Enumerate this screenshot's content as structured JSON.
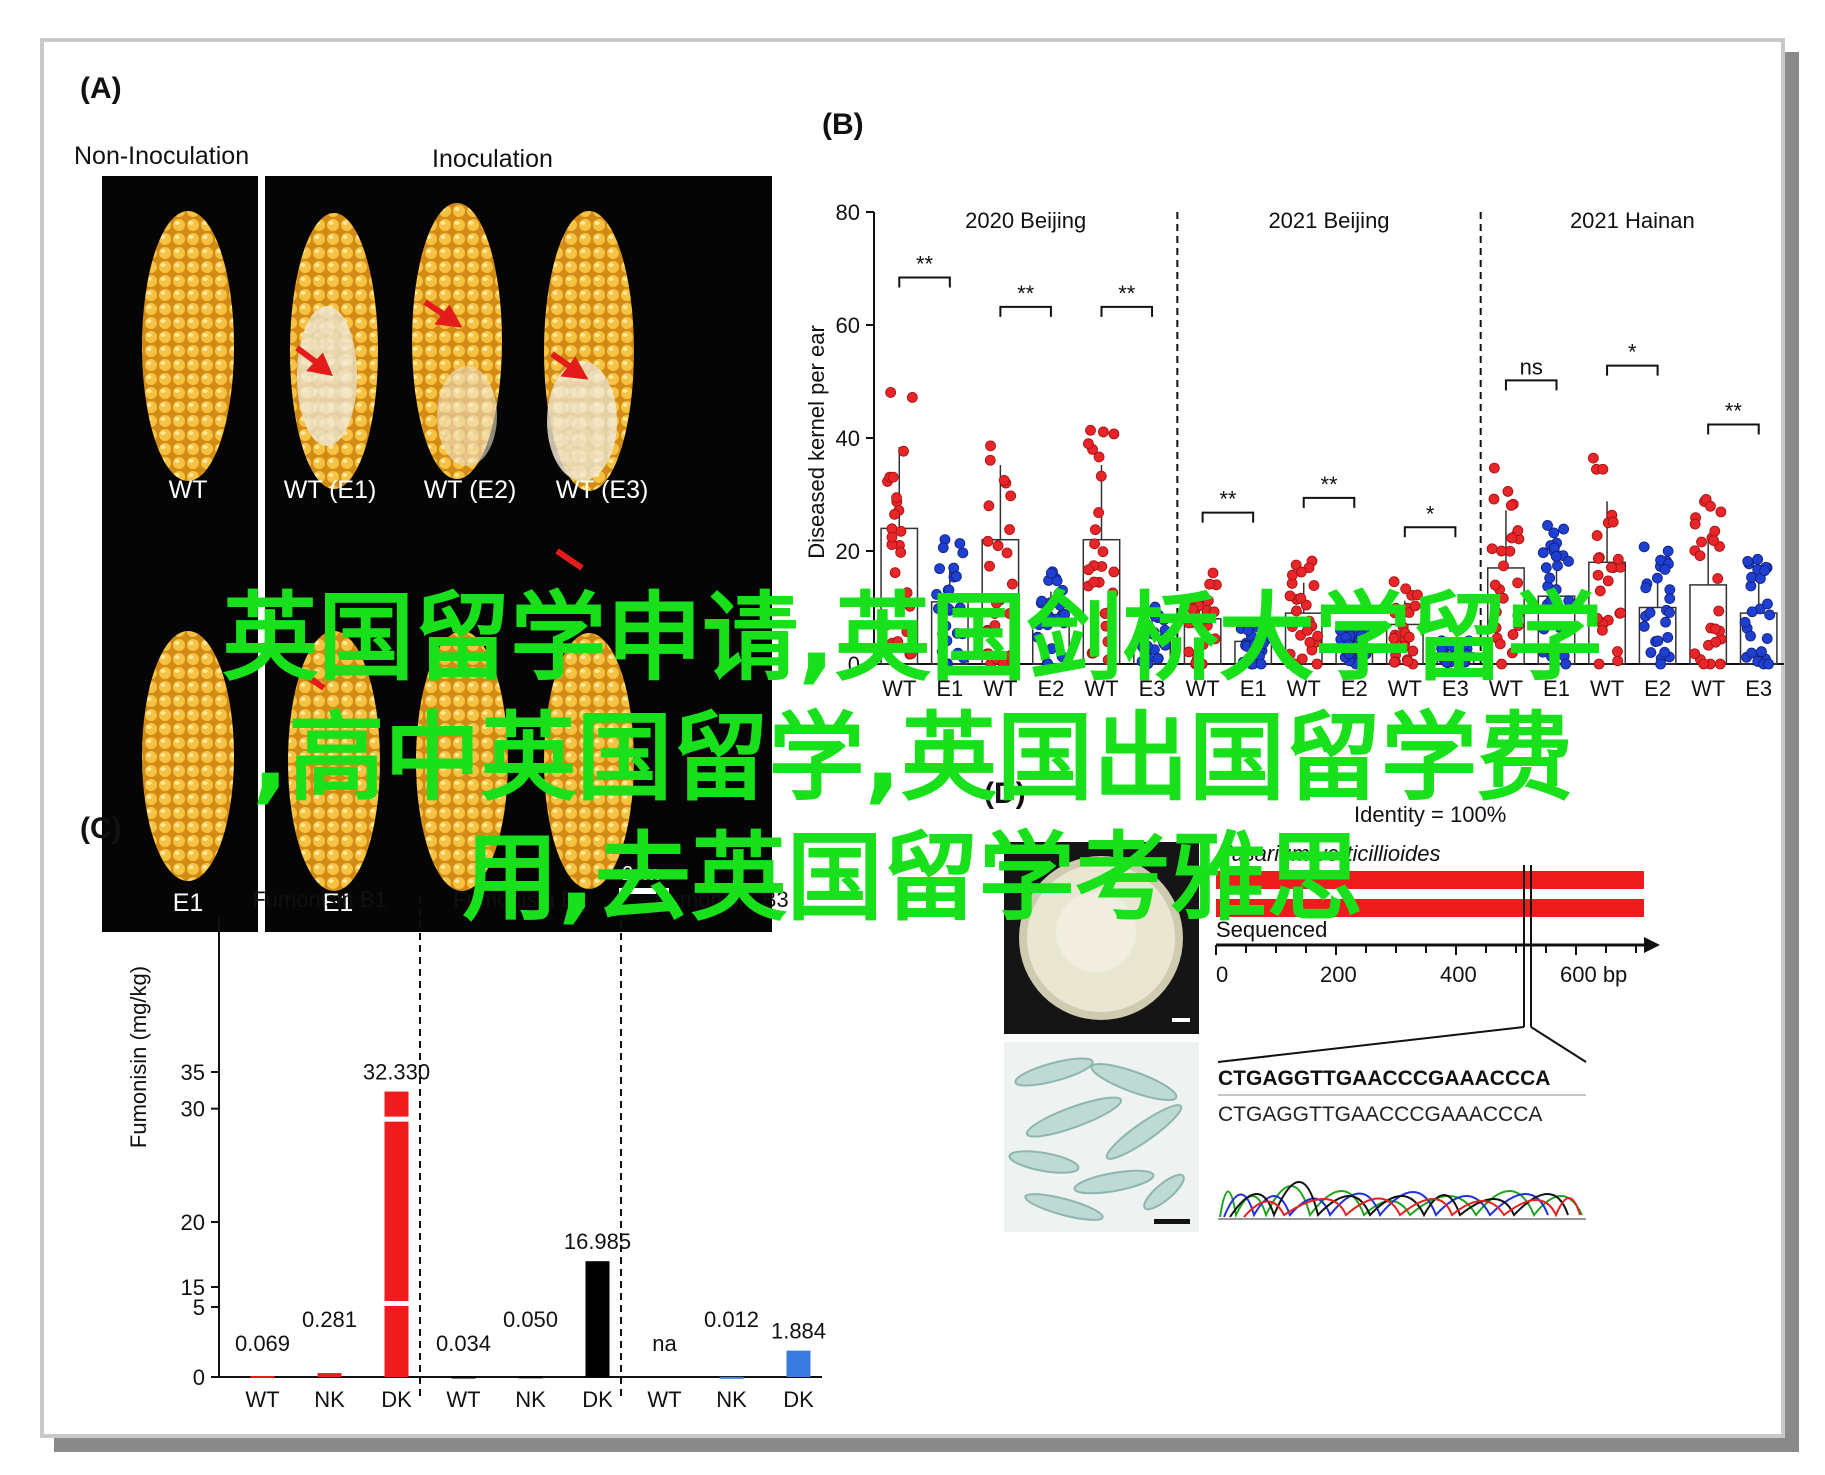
{
  "overlay": {
    "line1": "英国留学申请,英国剑桥大学留学",
    "line2": ",高中英国留学,英国出国留学费",
    "line3": "用,去英国留学考雅思",
    "color": "#18e01a"
  },
  "panelA": {
    "label": "(A)",
    "group_non": "Non-Inoculation",
    "group_inoc": "Inoculation",
    "top_labels": [
      "WT",
      "WT (E1)",
      "WT (E2)",
      "WT (E3)"
    ],
    "bottom_labels": [
      "E1",
      "E1"
    ],
    "scale": "2cm"
  },
  "panelB": {
    "label": "(B)",
    "ylabel": "Diseased kernel per ear",
    "ymax": 80,
    "yticks": [
      "0",
      "20",
      "40",
      "60",
      "80"
    ],
    "groups": [
      "2020 Beijing",
      "2021 Beijing",
      "2021 Hainan"
    ],
    "xlabels": [
      "WT",
      "E1",
      "WT",
      "E2",
      "WT",
      "E3",
      "WT",
      "E1",
      "WT",
      "E2",
      "WT",
      "E3",
      "WT",
      "E1",
      "WT",
      "E2",
      "WT",
      "E3"
    ],
    "sig": [
      "**",
      "**",
      "**",
      "**",
      "**",
      "*",
      "ns",
      "*",
      "**"
    ],
    "wt_color": "#e8262a",
    "mut_color": "#1f3fd0",
    "bar_means": [
      24,
      11,
      22,
      8,
      22,
      5,
      8,
      4,
      9,
      3,
      7,
      2,
      17,
      12,
      18,
      10,
      14,
      9
    ]
  },
  "panelC": {
    "label": "(C)",
    "ylabel": "Fumonisin (mg/kg)",
    "yticks": [
      "0",
      "5",
      "15",
      "20",
      "30",
      "35"
    ],
    "groups": [
      "Fumonisin B1",
      "Fumonisin B2",
      "Fumonisin B3"
    ],
    "colors": [
      "#ee1c1c",
      "#000000",
      "#3a7be0"
    ],
    "chart_data": [
      {
        "type": "bar",
        "title": "Fumonisin B1",
        "categories": [
          "WT",
          "NK",
          "DK"
        ],
        "value_labels": [
          "0.069",
          "0.281",
          "32.330"
        ],
        "values": [
          0.069,
          0.281,
          32.33
        ]
      },
      {
        "type": "bar",
        "title": "Fumonisin B2",
        "categories": [
          "WT",
          "NK",
          "DK"
        ],
        "value_labels": [
          "0.034",
          "0.050",
          "16.985"
        ],
        "values": [
          0.034,
          0.05,
          16.985
        ]
      },
      {
        "type": "bar",
        "title": "Fumonisin B3",
        "categories": [
          "WT",
          "NK",
          "DK"
        ],
        "value_labels": [
          "na",
          "0.012",
          "1.884"
        ],
        "values": [
          null,
          0.012,
          1.884
        ]
      }
    ]
  },
  "panelD": {
    "label": "(D)",
    "identity": "Identity = 100%",
    "species": "Fusarium verticillioides",
    "sequenced": "Sequenced",
    "axis": [
      "0",
      "200",
      "400",
      "600 bp"
    ],
    "seq1": "CTGAGGTTGAACCCGAAACCCA",
    "seq2": "CTGAGGTTGAACCCGAAACCCA"
  }
}
